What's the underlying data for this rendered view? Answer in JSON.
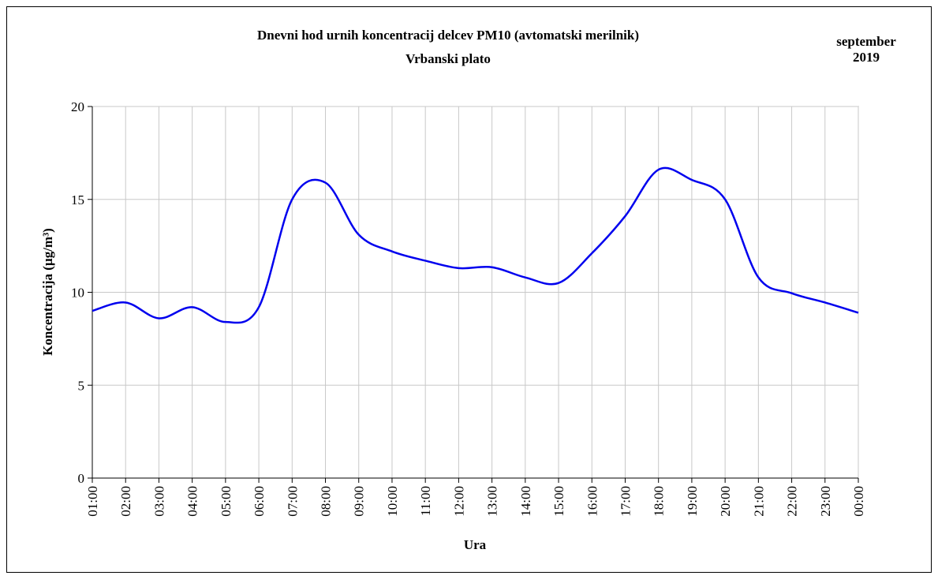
{
  "chart_data": {
    "type": "line",
    "title": "Dnevni hod urnih  koncentracij  delcev PM10 (avtomatski merilnik)",
    "subtitle": "Vrbanski plato",
    "period": [
      "september",
      "2019"
    ],
    "x_label": "Ura",
    "y_label": "Koncentracija  (µg/m³)",
    "categories": [
      "01:00",
      "02:00",
      "03:00",
      "04:00",
      "05:00",
      "06:00",
      "07:00",
      "08:00",
      "09:00",
      "10:00",
      "11:00",
      "12:00",
      "13:00",
      "14:00",
      "15:00",
      "16:00",
      "17:00",
      "18:00",
      "19:00",
      "20:00",
      "21:00",
      "22:00",
      "23:00",
      "00:00"
    ],
    "series": [
      {
        "color": "#0000ee",
        "values": [
          9.0,
          9.45,
          8.6,
          9.2,
          8.4,
          9.2,
          15.0,
          15.9,
          13.1,
          12.2,
          11.7,
          11.3,
          11.35,
          10.8,
          10.5,
          12.1,
          14.1,
          16.6,
          16.05,
          15.0,
          10.8,
          9.95,
          9.45,
          8.9
        ]
      }
    ],
    "ylim": [
      0,
      20
    ],
    "yticks": [
      0,
      5,
      10,
      15,
      20
    ],
    "grid": true
  }
}
